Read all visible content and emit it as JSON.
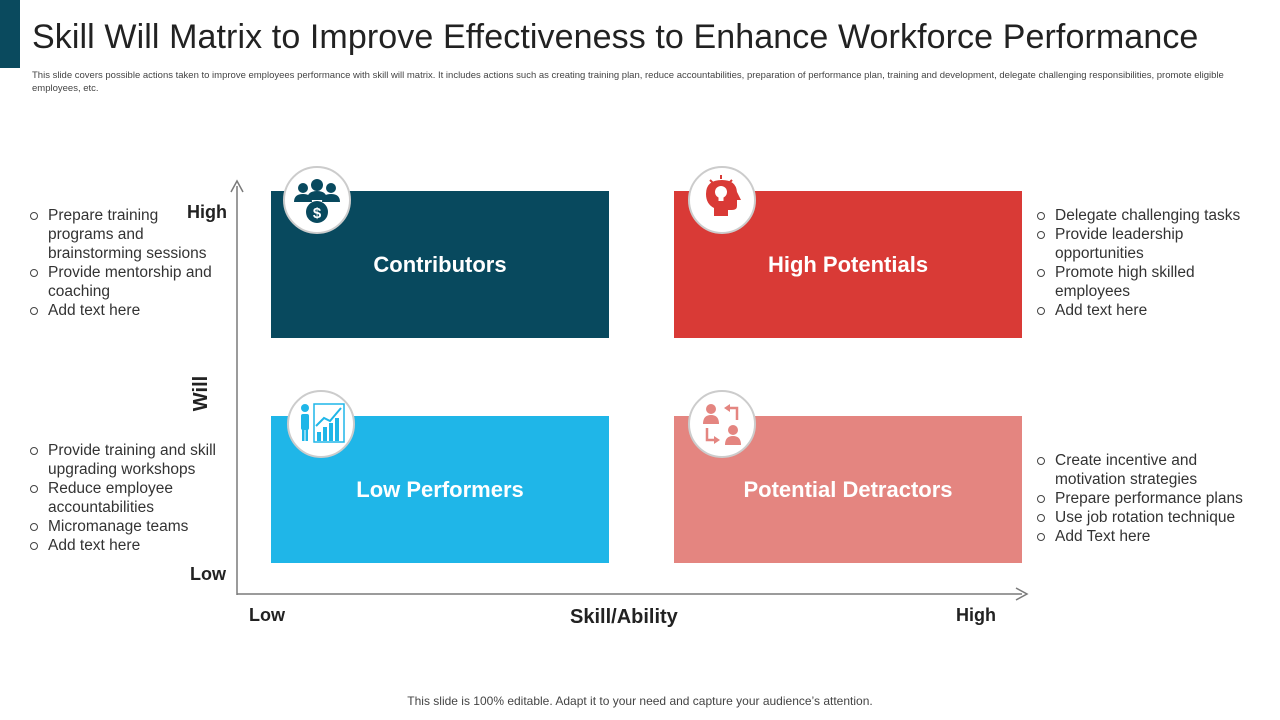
{
  "title": "Skill Will Matrix to Improve Effectiveness to Enhance Workforce Performance",
  "subtitle": "This slide covers possible actions taken to improve employees performance with skill will matrix. It includes actions such as creating training plan, reduce accountabilities, preparation of performance plan, training and development, delegate challenging responsibilities, promote eligible employees, etc.",
  "axes": {
    "y_title": "Will",
    "y_high": "High",
    "y_low": "Low",
    "x_title": "Skill/Ability",
    "x_low": "Low",
    "x_high": "High"
  },
  "quadrants": {
    "contributors": {
      "label": "Contributors",
      "color": "#08495e",
      "icon": "team-dollar-icon"
    },
    "high_potentials": {
      "label": "High Potentials",
      "color": "#d93a36",
      "icon": "head-lightbulb-icon"
    },
    "low_performers": {
      "label": "Low Performers",
      "color": "#1fb6e8",
      "icon": "person-growth-chart-icon"
    },
    "potential_detractors": {
      "label": "Potential Detractors",
      "color": "#e48580",
      "icon": "people-exchange-icon"
    }
  },
  "actions": {
    "contributors": [
      "Prepare training programs and brainstorming sessions",
      "Provide mentorship and coaching",
      "Add text here"
    ],
    "high_potentials": [
      "Delegate challenging tasks",
      "Provide leadership opportunities",
      "Promote high skilled employees",
      "Add text here"
    ],
    "low_performers": [
      "Provide training and skill upgrading workshops",
      "Reduce employee accountabilities",
      "Micromanage teams",
      "Add text here"
    ],
    "potential_detractors": [
      "Create incentive and motivation strategies",
      "Prepare performance plans",
      "Use job rotation technique",
      "Add Text here"
    ]
  },
  "footer": "This slide is 100% editable. Adapt it to your need and capture your audience’s attention."
}
